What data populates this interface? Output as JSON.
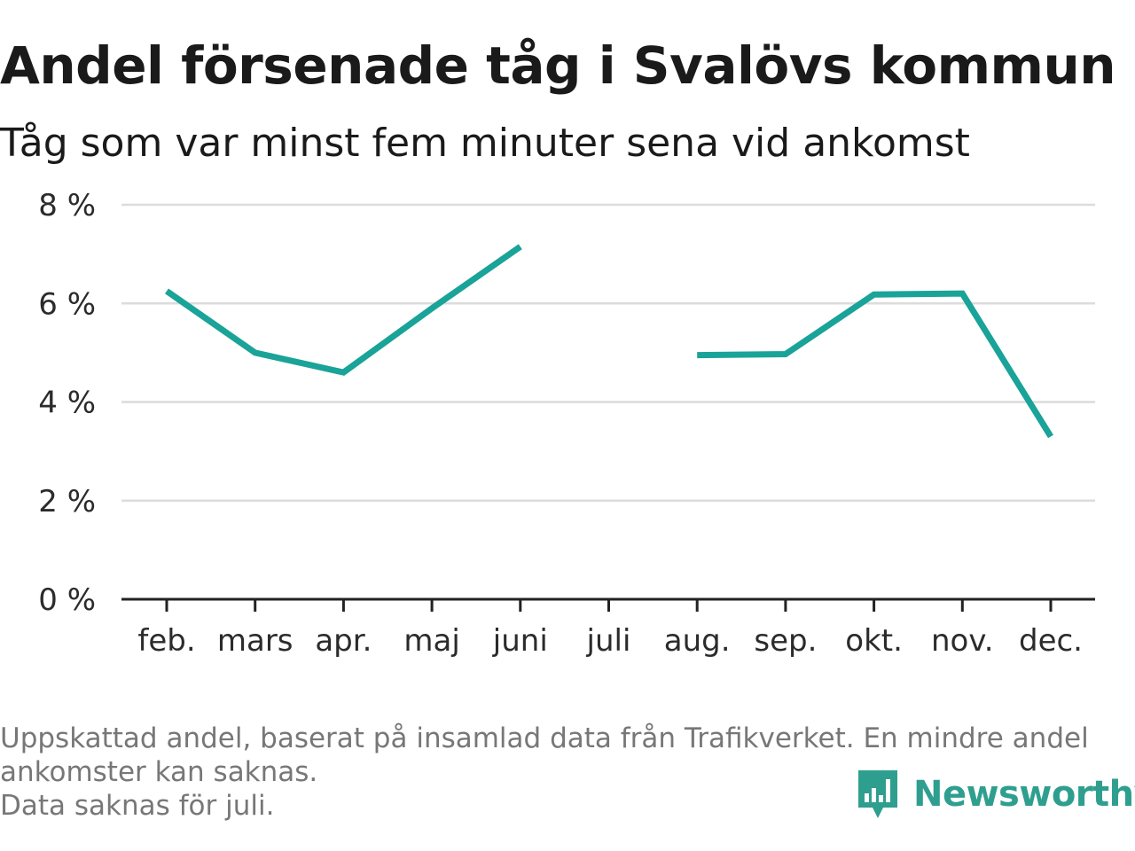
{
  "chart_data": {
    "type": "line",
    "title": "Andel försenade tåg i Svalövs kommun",
    "subtitle": "Tåg som var minst fem minuter sena vid ankomst",
    "categories": [
      "feb.",
      "mars",
      "apr.",
      "maj",
      "juni",
      "juli",
      "aug.",
      "sep.",
      "okt.",
      "nov.",
      "dec."
    ],
    "series": [
      {
        "values": [
          6.25,
          5.0,
          4.6,
          5.9,
          7.15,
          null,
          4.95,
          4.97,
          6.18,
          6.2,
          3.3
        ]
      }
    ],
    "yticks": [
      0,
      2,
      4,
      6,
      8
    ],
    "ytick_suffix": " %",
    "ylim": [
      0,
      8
    ],
    "grid": true,
    "line_color": "#1aa398",
    "gridline_color": "#dcdcdc",
    "axis_color": "#222222"
  },
  "footnote": {
    "line1": "Uppskattad andel, baserat på insamlad data från Trafikverket. En mindre andel",
    "line2": "ankomster kan saknas.",
    "line3": "Data saknas för juli."
  },
  "logo": {
    "text": "Newsworthy",
    "icon": "bar-chart-speech-bubble-icon",
    "color": "#2e9f8f"
  }
}
